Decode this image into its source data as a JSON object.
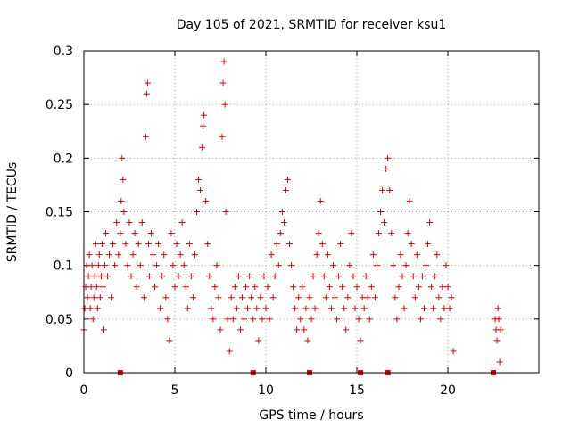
{
  "chart_data": {
    "type": "scatter",
    "title": "Day 105 of 2021, SRMTID for receiver ksu1",
    "xlabel": "GPS time / hours",
    "ylabel": "SRMTID / TECUs",
    "xlim": [
      0,
      25
    ],
    "ylim": [
      0,
      0.3
    ],
    "xticks": [
      0,
      5,
      10,
      15,
      20
    ],
    "xtick_labels": [
      "0",
      "5",
      "10",
      "15",
      "20"
    ],
    "yticks": [
      0,
      0.05,
      0.1,
      0.15,
      0.2,
      0.25,
      0.3
    ],
    "ytick_labels": [
      "0",
      "0.05",
      "0.1",
      "0.15",
      "0.2",
      "0.25",
      "0.3"
    ],
    "grid": true,
    "marker": "plus",
    "color": "#e00000",
    "series": [
      {
        "name": "SRMTID",
        "points": [
          [
            0.0,
            0.04
          ],
          [
            0.05,
            0.06
          ],
          [
            0.1,
            0.08
          ],
          [
            0.15,
            0.1
          ],
          [
            0.2,
            0.07
          ],
          [
            0.25,
            0.09
          ],
          [
            0.3,
            0.11
          ],
          [
            0.35,
            0.06
          ],
          [
            0.4,
            0.08
          ],
          [
            0.45,
            0.1
          ],
          [
            0.5,
            0.05
          ],
          [
            0.55,
            0.07
          ],
          [
            0.6,
            0.09
          ],
          [
            0.65,
            0.12
          ],
          [
            0.7,
            0.08
          ],
          [
            0.75,
            0.06
          ],
          [
            0.8,
            0.1
          ],
          [
            0.85,
            0.11
          ],
          [
            0.9,
            0.07
          ],
          [
            0.95,
            0.09
          ],
          [
            1.0,
            0.12
          ],
          [
            1.05,
            0.08
          ],
          [
            1.1,
            0.04
          ],
          [
            1.15,
            0.1
          ],
          [
            1.2,
            0.13
          ],
          [
            1.3,
            0.09
          ],
          [
            1.4,
            0.11
          ],
          [
            1.5,
            0.07
          ],
          [
            1.6,
            0.12
          ],
          [
            1.7,
            0.1
          ],
          [
            1.8,
            0.14
          ],
          [
            1.9,
            0.11
          ],
          [
            2.0,
            0.13
          ],
          [
            2.05,
            0.16
          ],
          [
            2.1,
            0.2
          ],
          [
            2.15,
            0.18
          ],
          [
            2.2,
            0.15
          ],
          [
            2.3,
            0.12
          ],
          [
            2.4,
            0.1
          ],
          [
            2.5,
            0.14
          ],
          [
            2.6,
            0.09
          ],
          [
            2.7,
            0.11
          ],
          [
            2.8,
            0.13
          ],
          [
            2.9,
            0.08
          ],
          [
            3.0,
            0.12
          ],
          [
            3.1,
            0.1
          ],
          [
            3.2,
            0.14
          ],
          [
            3.3,
            0.07
          ],
          [
            3.4,
            0.22
          ],
          [
            3.45,
            0.26
          ],
          [
            3.5,
            0.27
          ],
          [
            3.55,
            0.12
          ],
          [
            3.6,
            0.09
          ],
          [
            3.7,
            0.13
          ],
          [
            3.8,
            0.11
          ],
          [
            3.9,
            0.08
          ],
          [
            4.0,
            0.1
          ],
          [
            4.1,
            0.12
          ],
          [
            4.2,
            0.06
          ],
          [
            4.3,
            0.09
          ],
          [
            4.4,
            0.11
          ],
          [
            4.5,
            0.07
          ],
          [
            4.6,
            0.05
          ],
          [
            4.7,
            0.03
          ],
          [
            4.8,
            0.13
          ],
          [
            4.9,
            0.1
          ],
          [
            5.0,
            0.08
          ],
          [
            5.1,
            0.12
          ],
          [
            5.2,
            0.09
          ],
          [
            5.3,
            0.11
          ],
          [
            5.4,
            0.14
          ],
          [
            5.5,
            0.1
          ],
          [
            5.6,
            0.08
          ],
          [
            5.7,
            0.06
          ],
          [
            5.8,
            0.12
          ],
          [
            5.9,
            0.09
          ],
          [
            6.0,
            0.07
          ],
          [
            6.1,
            0.11
          ],
          [
            6.2,
            0.15
          ],
          [
            6.3,
            0.18
          ],
          [
            6.4,
            0.17
          ],
          [
            6.5,
            0.21
          ],
          [
            6.55,
            0.23
          ],
          [
            6.6,
            0.24
          ],
          [
            6.7,
            0.16
          ],
          [
            6.8,
            0.12
          ],
          [
            6.9,
            0.09
          ],
          [
            7.0,
            0.06
          ],
          [
            7.1,
            0.05
          ],
          [
            7.2,
            0.08
          ],
          [
            7.3,
            0.1
          ],
          [
            7.4,
            0.07
          ],
          [
            7.5,
            0.04
          ],
          [
            7.6,
            0.22
          ],
          [
            7.65,
            0.27
          ],
          [
            7.7,
            0.29
          ],
          [
            7.75,
            0.25
          ],
          [
            7.8,
            0.15
          ],
          [
            7.9,
            0.05
          ],
          [
            8.0,
            0.02
          ],
          [
            8.1,
            0.07
          ],
          [
            8.2,
            0.05
          ],
          [
            8.3,
            0.08
          ],
          [
            8.4,
            0.06
          ],
          [
            8.5,
            0.09
          ],
          [
            8.6,
            0.04
          ],
          [
            8.7,
            0.07
          ],
          [
            8.8,
            0.05
          ],
          [
            8.9,
            0.08
          ],
          [
            9.0,
            0.06
          ],
          [
            9.1,
            0.09
          ],
          [
            9.2,
            0.07
          ],
          [
            9.3,
            0.05
          ],
          [
            9.4,
            0.08
          ],
          [
            9.5,
            0.06
          ],
          [
            9.6,
            0.03
          ],
          [
            9.7,
            0.07
          ],
          [
            9.8,
            0.05
          ],
          [
            9.9,
            0.09
          ],
          [
            10.0,
            0.06
          ],
          [
            10.1,
            0.08
          ],
          [
            10.2,
            0.05
          ],
          [
            10.3,
            0.11
          ],
          [
            10.4,
            0.07
          ],
          [
            10.5,
            0.09
          ],
          [
            10.6,
            0.12
          ],
          [
            10.7,
            0.1
          ],
          [
            10.8,
            0.13
          ],
          [
            10.9,
            0.15
          ],
          [
            11.0,
            0.14
          ],
          [
            11.1,
            0.17
          ],
          [
            11.2,
            0.18
          ],
          [
            11.3,
            0.12
          ],
          [
            11.4,
            0.1
          ],
          [
            11.5,
            0.08
          ],
          [
            11.6,
            0.06
          ],
          [
            11.7,
            0.04
          ],
          [
            11.8,
            0.07
          ],
          [
            11.9,
            0.05
          ],
          [
            12.0,
            0.08
          ],
          [
            12.1,
            0.04
          ],
          [
            12.2,
            0.06
          ],
          [
            12.3,
            0.03
          ],
          [
            12.4,
            0.07
          ],
          [
            12.5,
            0.05
          ],
          [
            12.6,
            0.09
          ],
          [
            12.7,
            0.06
          ],
          [
            12.8,
            0.11
          ],
          [
            12.9,
            0.13
          ],
          [
            13.0,
            0.16
          ],
          [
            13.1,
            0.12
          ],
          [
            13.2,
            0.09
          ],
          [
            13.3,
            0.07
          ],
          [
            13.4,
            0.11
          ],
          [
            13.5,
            0.08
          ],
          [
            13.6,
            0.06
          ],
          [
            13.7,
            0.1
          ],
          [
            13.8,
            0.07
          ],
          [
            13.9,
            0.05
          ],
          [
            14.0,
            0.09
          ],
          [
            14.1,
            0.12
          ],
          [
            14.2,
            0.08
          ],
          [
            14.3,
            0.06
          ],
          [
            14.4,
            0.04
          ],
          [
            14.5,
            0.07
          ],
          [
            14.6,
            0.1
          ],
          [
            14.7,
            0.13
          ],
          [
            14.8,
            0.09
          ],
          [
            14.9,
            0.06
          ],
          [
            15.0,
            0.08
          ],
          [
            15.1,
            0.05
          ],
          [
            15.2,
            0.03
          ],
          [
            15.3,
            0.07
          ],
          [
            15.4,
            0.06
          ],
          [
            15.5,
            0.09
          ],
          [
            15.6,
            0.07
          ],
          [
            15.7,
            0.05
          ],
          [
            15.8,
            0.08
          ],
          [
            15.9,
            0.11
          ],
          [
            16.0,
            0.07
          ],
          [
            16.1,
            0.1
          ],
          [
            16.2,
            0.13
          ],
          [
            16.3,
            0.15
          ],
          [
            16.4,
            0.17
          ],
          [
            16.5,
            0.14
          ],
          [
            16.6,
            0.19
          ],
          [
            16.7,
            0.2
          ],
          [
            16.8,
            0.17
          ],
          [
            16.9,
            0.13
          ],
          [
            17.0,
            0.1
          ],
          [
            17.1,
            0.07
          ],
          [
            17.2,
            0.05
          ],
          [
            17.3,
            0.08
          ],
          [
            17.4,
            0.11
          ],
          [
            17.5,
            0.09
          ],
          [
            17.6,
            0.06
          ],
          [
            17.7,
            0.1
          ],
          [
            17.8,
            0.13
          ],
          [
            17.9,
            0.16
          ],
          [
            18.0,
            0.12
          ],
          [
            18.1,
            0.09
          ],
          [
            18.2,
            0.07
          ],
          [
            18.3,
            0.11
          ],
          [
            18.4,
            0.08
          ],
          [
            18.5,
            0.05
          ],
          [
            18.6,
            0.09
          ],
          [
            18.7,
            0.06
          ],
          [
            18.8,
            0.1
          ],
          [
            18.9,
            0.12
          ],
          [
            19.0,
            0.14
          ],
          [
            19.1,
            0.08
          ],
          [
            19.2,
            0.06
          ],
          [
            19.3,
            0.09
          ],
          [
            19.4,
            0.11
          ],
          [
            19.5,
            0.07
          ],
          [
            19.6,
            0.05
          ],
          [
            19.7,
            0.08
          ],
          [
            19.8,
            0.06
          ],
          [
            19.9,
            0.1
          ],
          [
            20.0,
            0.08
          ],
          [
            20.1,
            0.06
          ],
          [
            20.2,
            0.07
          ],
          [
            20.3,
            0.02
          ],
          [
            22.6,
            0.05
          ],
          [
            22.65,
            0.04
          ],
          [
            22.7,
            0.03
          ],
          [
            22.75,
            0.06
          ],
          [
            22.8,
            0.05
          ],
          [
            22.85,
            0.01
          ],
          [
            22.9,
            0.04
          ]
        ]
      }
    ],
    "gap_markers_x": [
      2.0,
      9.3,
      12.4,
      15.2,
      16.7,
      22.5
    ]
  }
}
